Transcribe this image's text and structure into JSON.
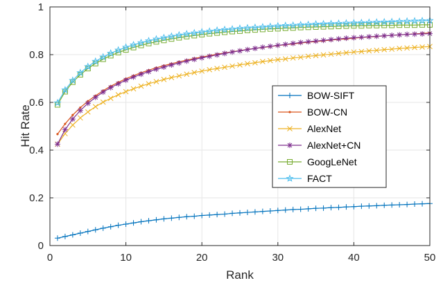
{
  "chart_data": {
    "type": "line",
    "title": "",
    "xlabel": "Rank",
    "ylabel": "Hit Rate",
    "xlim": [
      0,
      50
    ],
    "ylim": [
      0,
      1
    ],
    "xticks": [
      0,
      10,
      20,
      30,
      40,
      50
    ],
    "yticks": [
      0,
      0.2,
      0.4,
      0.6,
      0.8,
      1
    ],
    "ytick_labels": [
      "0",
      "0.2",
      "0.4",
      "0.6",
      "0.8",
      "1"
    ],
    "grid": true,
    "legend_position": "center-right",
    "series": [
      {
        "name": "BOW-SIFT",
        "color": "#0072BD",
        "marker": "plus",
        "x": [
          1,
          2,
          3,
          4,
          5,
          6,
          7,
          8,
          9,
          10,
          11,
          12,
          13,
          14,
          15,
          16,
          17,
          18,
          19,
          20,
          21,
          22,
          23,
          24,
          25,
          26,
          27,
          28,
          29,
          30,
          31,
          32,
          33,
          34,
          35,
          36,
          37,
          38,
          39,
          40,
          41,
          42,
          43,
          44,
          45,
          46,
          47,
          48,
          49,
          50
        ],
        "y": [
          0.031,
          0.038,
          0.045,
          0.052,
          0.059,
          0.066,
          0.073,
          0.079,
          0.085,
          0.09,
          0.095,
          0.1,
          0.104,
          0.108,
          0.112,
          0.115,
          0.118,
          0.121,
          0.123,
          0.126,
          0.128,
          0.13,
          0.132,
          0.135,
          0.137,
          0.139,
          0.141,
          0.143,
          0.145,
          0.147,
          0.149,
          0.151,
          0.152,
          0.154,
          0.156,
          0.157,
          0.159,
          0.16,
          0.162,
          0.163,
          0.165,
          0.166,
          0.167,
          0.169,
          0.17,
          0.171,
          0.172,
          0.174,
          0.175,
          0.176
        ]
      },
      {
        "name": "BOW-CN",
        "color": "#D95319",
        "marker": "dot",
        "x": [
          1,
          2,
          3,
          4,
          5,
          6,
          7,
          8,
          9,
          10,
          11,
          12,
          13,
          14,
          15,
          16,
          17,
          18,
          19,
          20,
          21,
          22,
          23,
          24,
          25,
          26,
          27,
          28,
          29,
          30,
          31,
          32,
          33,
          34,
          35,
          36,
          37,
          38,
          39,
          40,
          41,
          42,
          43,
          44,
          45,
          46,
          47,
          48,
          49,
          50
        ],
        "y": [
          0.467,
          0.51,
          0.547,
          0.578,
          0.605,
          0.628,
          0.649,
          0.668,
          0.684,
          0.699,
          0.712,
          0.724,
          0.735,
          0.745,
          0.754,
          0.762,
          0.77,
          0.777,
          0.784,
          0.79,
          0.796,
          0.802,
          0.807,
          0.812,
          0.817,
          0.822,
          0.826,
          0.83,
          0.834,
          0.838,
          0.842,
          0.845,
          0.849,
          0.852,
          0.855,
          0.858,
          0.861,
          0.864,
          0.866,
          0.869,
          0.872,
          0.874,
          0.876,
          0.879,
          0.881,
          0.883,
          0.885,
          0.887,
          0.889,
          0.891
        ]
      },
      {
        "name": "AlexNet",
        "color": "#EDB120",
        "marker": "x",
        "x": [
          1,
          2,
          3,
          4,
          5,
          6,
          7,
          8,
          9,
          10,
          11,
          12,
          13,
          14,
          15,
          16,
          17,
          18,
          19,
          20,
          21,
          22,
          23,
          24,
          25,
          26,
          27,
          28,
          29,
          30,
          31,
          32,
          33,
          34,
          35,
          36,
          37,
          38,
          39,
          40,
          41,
          42,
          43,
          44,
          45,
          46,
          47,
          48,
          49,
          50
        ],
        "y": [
          0.425,
          0.469,
          0.505,
          0.535,
          0.56,
          0.582,
          0.601,
          0.617,
          0.632,
          0.645,
          0.657,
          0.668,
          0.678,
          0.687,
          0.696,
          0.704,
          0.711,
          0.718,
          0.725,
          0.731,
          0.737,
          0.742,
          0.747,
          0.752,
          0.757,
          0.762,
          0.766,
          0.771,
          0.775,
          0.779,
          0.782,
          0.786,
          0.789,
          0.793,
          0.796,
          0.799,
          0.802,
          0.805,
          0.808,
          0.811,
          0.813,
          0.816,
          0.818,
          0.821,
          0.823,
          0.826,
          0.828,
          0.83,
          0.832,
          0.834
        ]
      },
      {
        "name": "AlexNet+CN",
        "color": "#7E2F8E",
        "marker": "asterisk",
        "x": [
          1,
          2,
          3,
          4,
          5,
          6,
          7,
          8,
          9,
          10,
          11,
          12,
          13,
          14,
          15,
          16,
          17,
          18,
          19,
          20,
          21,
          22,
          23,
          24,
          25,
          26,
          27,
          28,
          29,
          30,
          31,
          32,
          33,
          34,
          35,
          36,
          37,
          38,
          39,
          40,
          41,
          42,
          43,
          44,
          45,
          46,
          47,
          48,
          49,
          50
        ],
        "y": [
          0.425,
          0.486,
          0.53,
          0.566,
          0.596,
          0.621,
          0.643,
          0.662,
          0.678,
          0.693,
          0.706,
          0.718,
          0.729,
          0.739,
          0.748,
          0.757,
          0.765,
          0.773,
          0.78,
          0.787,
          0.793,
          0.799,
          0.805,
          0.811,
          0.816,
          0.821,
          0.826,
          0.831,
          0.835,
          0.839,
          0.843,
          0.847,
          0.851,
          0.854,
          0.857,
          0.86,
          0.863,
          0.866,
          0.869,
          0.871,
          0.873,
          0.875,
          0.877,
          0.879,
          0.881,
          0.883,
          0.885,
          0.886,
          0.887,
          0.888
        ]
      },
      {
        "name": "GoogLeNet",
        "color": "#77AC30",
        "marker": "square",
        "x": [
          1,
          2,
          3,
          4,
          5,
          6,
          7,
          8,
          9,
          10,
          11,
          12,
          13,
          14,
          15,
          16,
          17,
          18,
          19,
          20,
          21,
          22,
          23,
          24,
          25,
          26,
          27,
          28,
          29,
          30,
          31,
          32,
          33,
          34,
          35,
          36,
          37,
          38,
          39,
          40,
          41,
          42,
          43,
          44,
          45,
          46,
          47,
          48,
          49,
          50
        ],
        "y": [
          0.59,
          0.645,
          0.685,
          0.716,
          0.742,
          0.763,
          0.781,
          0.796,
          0.809,
          0.82,
          0.83,
          0.839,
          0.847,
          0.854,
          0.86,
          0.866,
          0.871,
          0.876,
          0.88,
          0.884,
          0.888,
          0.891,
          0.894,
          0.897,
          0.899,
          0.902,
          0.904,
          0.906,
          0.908,
          0.909,
          0.911,
          0.912,
          0.914,
          0.915,
          0.916,
          0.917,
          0.918,
          0.919,
          0.92,
          0.921,
          0.921,
          0.922,
          0.922,
          0.923,
          0.923,
          0.924,
          0.924,
          0.924,
          0.925,
          0.925
        ]
      },
      {
        "name": "FACT",
        "color": "#4DBEEE",
        "marker": "star",
        "x": [
          1,
          2,
          3,
          4,
          5,
          6,
          7,
          8,
          9,
          10,
          11,
          12,
          13,
          14,
          15,
          16,
          17,
          18,
          19,
          20,
          21,
          22,
          23,
          24,
          25,
          26,
          27,
          28,
          29,
          30,
          31,
          32,
          33,
          34,
          35,
          36,
          37,
          38,
          39,
          40,
          41,
          42,
          43,
          44,
          45,
          46,
          47,
          48,
          49,
          50
        ],
        "y": [
          0.598,
          0.652,
          0.692,
          0.724,
          0.75,
          0.772,
          0.79,
          0.806,
          0.819,
          0.831,
          0.841,
          0.85,
          0.858,
          0.865,
          0.871,
          0.877,
          0.882,
          0.887,
          0.891,
          0.895,
          0.898,
          0.902,
          0.905,
          0.907,
          0.91,
          0.912,
          0.914,
          0.916,
          0.918,
          0.92,
          0.922,
          0.923,
          0.925,
          0.926,
          0.928,
          0.929,
          0.93,
          0.931,
          0.932,
          0.933,
          0.934,
          0.935,
          0.936,
          0.937,
          0.938,
          0.939,
          0.94,
          0.941,
          0.942,
          0.943
        ]
      }
    ]
  }
}
